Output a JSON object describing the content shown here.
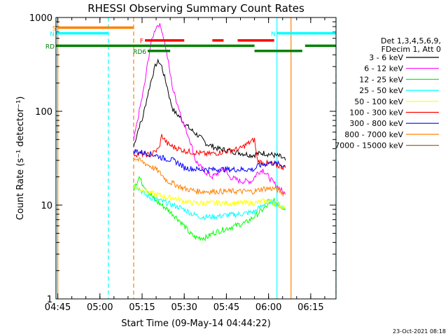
{
  "chart_data": {
    "type": "line",
    "title": "RHESSI Observing Summary Count Rates",
    "xlabel": "Start Time (09-May-14 04:44:22)",
    "ylabel": "Count Rate (s⁻¹ detector⁻¹)",
    "yscale": "log",
    "xlim": [
      "04:44:22",
      "06:24:00"
    ],
    "ylim": [
      1,
      1000
    ],
    "x_tick_labels": [
      "04:45",
      "05:00",
      "05:15",
      "05:30",
      "05:45",
      "06:00",
      "06:15"
    ],
    "y_tick_labels": [
      "1",
      "10",
      "100",
      "1000"
    ],
    "legend_header": [
      "Det 1,3,4,5,6,9,",
      "FDecim 1, Att 0"
    ],
    "footer_date": "23-Oct-2021 08:18",
    "legend_position": "right",
    "series": [
      {
        "name": "3 - 6 keV",
        "color": "#000000",
        "x": [
          "05:12",
          "05:13",
          "05:14",
          "05:15",
          "05:16",
          "05:17",
          "05:18",
          "05:19",
          "05:20",
          "05:21",
          "05:22",
          "05:23",
          "05:24",
          "05:25",
          "05:26",
          "05:27",
          "05:28",
          "05:30",
          "05:32",
          "05:35",
          "05:38",
          "05:42",
          "05:46",
          "05:50",
          "05:54",
          "05:56",
          "05:58",
          "06:00",
          "06:02",
          "06:04",
          "06:06"
        ],
        "y": [
          42,
          55,
          70,
          80,
          110,
          150,
          200,
          260,
          320,
          340,
          300,
          230,
          180,
          130,
          105,
          95,
          90,
          75,
          65,
          55,
          45,
          40,
          38,
          36,
          34,
          35,
          36,
          35,
          34,
          33,
          30
        ]
      },
      {
        "name": "6 - 12 keV",
        "color": "#ff00ff",
        "x": [
          "05:12",
          "05:13",
          "05:14",
          "05:15",
          "05:16",
          "05:17",
          "05:18",
          "05:19",
          "05:20",
          "05:21",
          "05:22",
          "05:23",
          "05:24",
          "05:25",
          "05:26",
          "05:28",
          "05:30",
          "05:32",
          "05:34",
          "05:36",
          "05:38",
          "05:40",
          "05:42",
          "05:44",
          "05:46",
          "05:50",
          "05:54",
          "05:56",
          "05:58",
          "06:00",
          "06:02",
          "06:04",
          "06:06"
        ],
        "y": [
          48,
          70,
          100,
          140,
          200,
          330,
          500,
          650,
          800,
          850,
          750,
          550,
          380,
          250,
          170,
          110,
          70,
          50,
          30,
          25,
          22,
          20,
          22,
          25,
          20,
          18,
          18,
          22,
          24,
          20,
          17,
          15,
          13
        ]
      },
      {
        "name": "12 - 25 keV",
        "color": "#00ff00",
        "x": [
          "05:12",
          "05:14",
          "05:15",
          "05:16",
          "05:18",
          "05:20",
          "05:22",
          "05:24",
          "05:26",
          "05:28",
          "05:30",
          "05:32",
          "05:34",
          "05:36",
          "05:38",
          "05:40",
          "05:44",
          "05:48",
          "05:52",
          "05:56",
          "05:58",
          "06:00",
          "06:02",
          "06:04",
          "06:06"
        ],
        "y": [
          15,
          20,
          17,
          16,
          13,
          11,
          10,
          9,
          8,
          7,
          6,
          5,
          4.5,
          4.5,
          4.5,
          5,
          5.5,
          6,
          6.5,
          8,
          9,
          10,
          11,
          10,
          9
        ]
      },
      {
        "name": "25 - 50 keV",
        "color": "#00ffff",
        "x": [
          "05:12",
          "05:14",
          "05:16",
          "05:18",
          "05:20",
          "05:22",
          "05:24",
          "05:26",
          "05:28",
          "05:30",
          "05:33",
          "05:36",
          "05:40",
          "05:45",
          "05:50",
          "05:55",
          "05:58",
          "06:00",
          "06:02",
          "06:04",
          "06:06"
        ],
        "y": [
          17,
          15,
          13,
          12,
          11.5,
          11,
          10.5,
          10,
          9.5,
          9,
          8,
          7.5,
          7.5,
          7.8,
          8,
          8.5,
          10,
          11,
          10.5,
          10,
          9
        ]
      },
      {
        "name": "50 - 100 keV",
        "color": "#ffff00",
        "x": [
          "05:12",
          "05:14",
          "05:16",
          "05:18",
          "05:20",
          "05:22",
          "05:24",
          "05:26",
          "05:28",
          "05:30",
          "05:33",
          "05:36",
          "05:40",
          "05:45",
          "05:50",
          "05:55",
          "05:58",
          "06:00",
          "06:02",
          "06:04",
          "06:06"
        ],
        "y": [
          16,
          15,
          14,
          13.5,
          13,
          12.5,
          12,
          12,
          11.5,
          11,
          10.5,
          10.5,
          10.5,
          10.5,
          10.5,
          10.5,
          11,
          11,
          10.5,
          10,
          9.5
        ]
      },
      {
        "name": "100 - 300 keV",
        "color": "#ff0000",
        "x": [
          "05:12",
          "05:14",
          "05:16",
          "05:18",
          "05:19",
          "05:20",
          "05:21",
          "05:22",
          "05:23",
          "05:24",
          "05:26",
          "05:28",
          "05:30",
          "05:32",
          "05:35",
          "05:38",
          "05:42",
          "05:46",
          "05:50",
          "05:52",
          "05:54",
          "05:55",
          "05:56",
          "05:58",
          "06:00",
          "06:02",
          "06:04",
          "06:06"
        ],
        "y": [
          35,
          35,
          35,
          34,
          36,
          38,
          40,
          55,
          50,
          45,
          42,
          40,
          38,
          37,
          36,
          35,
          36,
          38,
          40,
          44,
          48,
          50,
          30,
          28,
          28,
          27,
          26,
          25
        ]
      },
      {
        "name": "300 - 800 keV",
        "color": "#0000ff",
        "x": [
          "05:12",
          "05:14",
          "05:16",
          "05:18",
          "05:20",
          "05:22",
          "05:24",
          "05:26",
          "05:28",
          "05:30",
          "05:35",
          "05:40",
          "05:45",
          "05:50",
          "05:55",
          "05:56",
          "05:58",
          "06:00",
          "06:02",
          "06:04",
          "06:06"
        ],
        "y": [
          38,
          37,
          36,
          35,
          34,
          32,
          31,
          30,
          28,
          25,
          24,
          24,
          24,
          24,
          24,
          26,
          27,
          28,
          28,
          27,
          26
        ]
      },
      {
        "name": "800 - 7000 keV",
        "color": "#ff8000",
        "x": [
          "05:12",
          "05:14",
          "05:16",
          "05:18",
          "05:20",
          "05:22",
          "05:24",
          "05:26",
          "05:28",
          "05:30",
          "05:35",
          "05:40",
          "05:45",
          "05:50",
          "05:55",
          "05:58",
          "06:00",
          "06:02",
          "06:04",
          "06:06"
        ],
        "y": [
          32,
          30,
          28,
          26,
          24,
          21,
          18,
          17,
          16,
          15,
          14,
          14,
          14,
          14,
          14,
          15,
          15,
          15,
          14,
          13
        ]
      },
      {
        "name": "7000 - 15000 keV",
        "color": "#996633",
        "x": [],
        "y": []
      }
    ],
    "state_bars": [
      {
        "label": "S",
        "color": "#ff8000",
        "start": "04:45",
        "end": "05:12",
        "level": 780
      },
      {
        "label": "N",
        "color": "#00ffff",
        "start": "04:44:22",
        "end": "05:03",
        "level": 680
      },
      {
        "label": "N",
        "color": "#00ffff",
        "start": "06:03",
        "end": "06:24",
        "level": 680
      },
      {
        "label": "F",
        "color": "#ff0000",
        "start": "05:16",
        "end": "05:30",
        "level": 570
      },
      {
        "label": "",
        "color": "#ff0000",
        "start": "05:40",
        "end": "05:44",
        "level": 570
      },
      {
        "label": "",
        "color": "#ff0000",
        "start": "05:49",
        "end": "06:02",
        "level": 570
      },
      {
        "label": "RD",
        "color": "#008000",
        "start": "04:44:22",
        "end": "05:55",
        "level": 500
      },
      {
        "label": "",
        "color": "#008000",
        "start": "06:13",
        "end": "06:24",
        "level": 500
      },
      {
        "label": "RD6",
        "color": "#008000",
        "start": "05:17",
        "end": "05:25",
        "level": 440
      },
      {
        "label": "",
        "color": "#008000",
        "start": "05:55",
        "end": "06:12",
        "level": 440
      }
    ],
    "vlines": [
      {
        "time": "04:44:22",
        "color": "#00ffff",
        "style": "solid"
      },
      {
        "time": "04:45",
        "color": "#ff8000",
        "style": "solid"
      },
      {
        "time": "05:03",
        "color": "#00ffff",
        "style": "dashed"
      },
      {
        "time": "05:12",
        "color": "#ff8000",
        "style": "dashed"
      },
      {
        "time": "06:03",
        "color": "#00ffff",
        "style": "solid"
      },
      {
        "time": "06:08",
        "color": "#ff8000",
        "style": "solid"
      },
      {
        "time": "06:24",
        "color": "#00ffff",
        "style": "dashed"
      }
    ]
  }
}
